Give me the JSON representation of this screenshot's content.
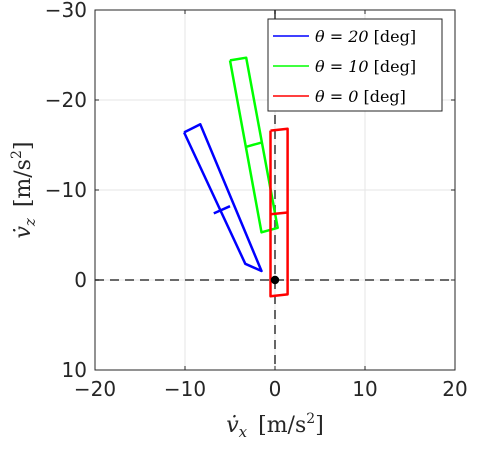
{
  "chart_data": {
    "type": "line",
    "title": "",
    "xlabel": {
      "symbol": "v̇",
      "sub": "x",
      "unit_prefix": "[m/s",
      "unit_sup": "2",
      "unit_suffix": "]"
    },
    "ylabel": {
      "symbol": "v̇",
      "sub": "z",
      "unit_prefix": "[m/s",
      "unit_sup": "2",
      "unit_suffix": "]"
    },
    "xlim": [
      -20,
      20
    ],
    "ylim": [
      10,
      -30
    ],
    "y_reversed": true,
    "xticks": [
      -20,
      -10,
      0,
      10,
      20
    ],
    "yticks": [
      -30,
      -20,
      -10,
      0,
      10
    ],
    "xtick_labels": [
      "−20",
      "−10",
      "0",
      "10",
      "20"
    ],
    "ytick_labels": [
      "−30",
      "−20",
      "−10",
      "0",
      "10"
    ],
    "grid": true,
    "legend_position": "top-right",
    "reference_lines": [
      {
        "orientation": "horizontal",
        "value": 0,
        "style": "dashed",
        "color": "#555555"
      },
      {
        "orientation": "vertical",
        "value": 0,
        "style": "dashed",
        "color": "#555555"
      }
    ],
    "origin_point": {
      "x": 0,
      "y": 0,
      "color": "#000000"
    },
    "series": [
      {
        "name": "θ = 20 [deg]",
        "legend_parts": [
          "θ = 20",
          "[deg]"
        ],
        "color": "#0000ff",
        "outline": [
          [
            -10.1,
            -16.4
          ],
          [
            -8.3,
            -17.3
          ],
          [
            -1.5,
            -1.0
          ],
          [
            -3.3,
            -1.8
          ],
          [
            -10.1,
            -16.4
          ]
        ],
        "midline": [
          [
            -6.8,
            -7.4
          ],
          [
            -5.0,
            -8.2
          ]
        ]
      },
      {
        "name": "θ = 10 [deg]",
        "legend_parts": [
          "θ = 10",
          "[deg]"
        ],
        "color": "#00ff00",
        "outline": [
          [
            -5.0,
            -24.4
          ],
          [
            -3.2,
            -24.7
          ],
          [
            0.3,
            -5.8
          ],
          [
            -1.5,
            -5.3
          ],
          [
            -5.0,
            -24.4
          ]
        ],
        "midline": [
          [
            -3.2,
            -14.8
          ],
          [
            -1.4,
            -15.3
          ]
        ]
      },
      {
        "name": "θ = 0 [deg]",
        "legend_parts": [
          "θ = 0",
          "[deg]"
        ],
        "color": "#ff0000",
        "outline": [
          [
            -0.5,
            -16.6
          ],
          [
            1.4,
            -16.8
          ],
          [
            1.4,
            1.6
          ],
          [
            -0.5,
            1.8
          ],
          [
            -0.5,
            -16.6
          ]
        ],
        "midline": [
          [
            -0.5,
            -7.3
          ],
          [
            1.4,
            -7.5
          ]
        ]
      }
    ]
  }
}
